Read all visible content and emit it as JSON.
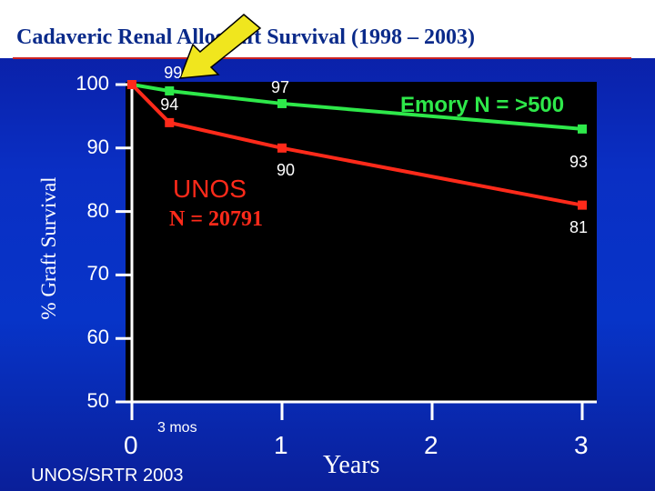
{
  "page": {
    "title": "Cadaveric Renal Allograft Survival  (1998 – 2003)",
    "source": "UNOS/SRTR 2003",
    "small_label": "3 mos"
  },
  "colors": {
    "background": "#0a2fc4",
    "emory": "#2ee84a",
    "unos": "#ff2a1a",
    "arrow": "#f0e61e",
    "title_text": "#0a2a8a"
  },
  "chart_data": {
    "type": "line",
    "xlabel": "Years",
    "ylabel": "% Graft Survival",
    "xlim": [
      0,
      3
    ],
    "ylim": [
      50,
      100
    ],
    "xticks": [
      0,
      1,
      2,
      3
    ],
    "xtick_labels": [
      "0",
      "1",
      "2",
      "3"
    ],
    "yticks": [
      50,
      60,
      70,
      80,
      90,
      100
    ],
    "ytick_labels": [
      "50",
      "60",
      "70",
      "80",
      "90",
      "100"
    ],
    "grid": false,
    "series": [
      {
        "name": "Emory N = >500",
        "x": [
          0,
          0.25,
          1,
          3
        ],
        "y": [
          100,
          99,
          97,
          93
        ],
        "data_labels": [
          "",
          "99",
          "97",
          "93"
        ]
      },
      {
        "name": "UNOS N = 20791",
        "label_line1": "UNOS",
        "label_line2": "N = 20791",
        "x": [
          0,
          0.25,
          1,
          3
        ],
        "y": [
          100,
          94,
          90,
          81
        ],
        "data_labels": [
          "",
          "94",
          "90",
          "81"
        ]
      }
    ],
    "annotation": "arrow pointing to 99"
  }
}
